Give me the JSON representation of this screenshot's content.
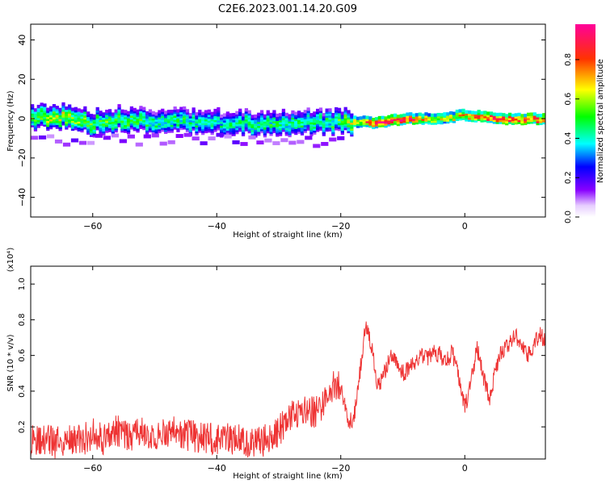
{
  "title": "C2E6.2023.001.14.20.G09",
  "chart_data": [
    {
      "type": "heatmap",
      "xlabel": "Height of straight line (km)",
      "ylabel": "Frequency (Hz)",
      "xlim": [
        -70,
        13
      ],
      "ylim": [
        -50,
        48
      ],
      "xticks": [
        -60,
        -40,
        -20,
        0
      ],
      "yticks": [
        -40,
        -20,
        0,
        20,
        40
      ],
      "colorbar": {
        "label": "Normalized spectral amplitude",
        "range": [
          0.0,
          0.98
        ],
        "ticks": [
          0.0,
          0.2,
          0.4,
          0.6,
          0.8
        ],
        "tick_labels": [
          "0.0",
          "0.2",
          "0.4",
          "0.6",
          "0.8"
        ],
        "colormap": "rainbow (white-purple-blue-cyan-green-yellow-red-magenta)"
      },
      "ridge": [
        {
          "x": -70,
          "freq": 0,
          "amp": 0.55
        },
        {
          "x": -65,
          "freq": 1,
          "amp": 0.6
        },
        {
          "x": -60,
          "freq": -2,
          "amp": 0.5
        },
        {
          "x": -55,
          "freq": 0,
          "amp": 0.5
        },
        {
          "x": -50,
          "freq": -1,
          "amp": 0.45
        },
        {
          "x": -45,
          "freq": -1,
          "amp": 0.45
        },
        {
          "x": -40,
          "freq": -2,
          "amp": 0.4
        },
        {
          "x": -35,
          "freq": -2,
          "amp": 0.45
        },
        {
          "x": -30,
          "freq": -2,
          "amp": 0.45
        },
        {
          "x": -25,
          "freq": -2,
          "amp": 0.45
        },
        {
          "x": -20,
          "freq": -1,
          "amp": 0.5
        },
        {
          "x": -15,
          "freq": -2,
          "amp": 0.8
        },
        {
          "x": -10,
          "freq": 0,
          "amp": 0.85
        },
        {
          "x": -5,
          "freq": 0,
          "amp": 0.6
        },
        {
          "x": 0,
          "freq": 2,
          "amp": 0.7
        },
        {
          "x": 5,
          "freq": 0,
          "amp": 0.85
        },
        {
          "x": 13,
          "freq": 0,
          "amp": 0.8
        }
      ]
    },
    {
      "type": "line",
      "xlabel": "Height of straight line (km)",
      "ylabel": "SNR (10 * v/v)",
      "y_multiplier": "(x10⁴)",
      "xlim": [
        -70,
        13
      ],
      "ylim": [
        0.02,
        1.1
      ],
      "xticks": [
        -60,
        -40,
        -20,
        0
      ],
      "yticks": [
        0.2,
        0.4,
        0.6,
        0.8,
        1.0
      ],
      "ytick_labels": [
        "0.2",
        "0.4",
        "0.6",
        "0.8",
        "1.0"
      ],
      "color": "#ee3333",
      "x": [
        -70,
        -68,
        -66,
        -64,
        -62,
        -60,
        -58,
        -56,
        -54,
        -52,
        -50,
        -48,
        -46,
        -44,
        -42,
        -40,
        -38,
        -36,
        -34,
        -32,
        -30,
        -28,
        -26,
        -24,
        -22,
        -21,
        -20,
        -19,
        -18,
        -17,
        -16,
        -15,
        -14,
        -13,
        -12,
        -11,
        -10,
        -9,
        -8,
        -7,
        -6,
        -5,
        -4,
        -3,
        -2,
        -1,
        0,
        1,
        2,
        3,
        4,
        5,
        6,
        7,
        8,
        9,
        10,
        11,
        12,
        13
      ],
      "values": [
        0.12,
        0.13,
        0.11,
        0.14,
        0.12,
        0.16,
        0.13,
        0.18,
        0.15,
        0.17,
        0.14,
        0.18,
        0.16,
        0.15,
        0.14,
        0.13,
        0.14,
        0.12,
        0.1,
        0.13,
        0.18,
        0.26,
        0.3,
        0.28,
        0.36,
        0.45,
        0.42,
        0.25,
        0.22,
        0.48,
        0.78,
        0.65,
        0.42,
        0.5,
        0.6,
        0.55,
        0.5,
        0.52,
        0.56,
        0.6,
        0.58,
        0.63,
        0.6,
        0.56,
        0.62,
        0.48,
        0.3,
        0.46,
        0.64,
        0.48,
        0.36,
        0.52,
        0.63,
        0.66,
        0.72,
        0.68,
        0.6,
        0.65,
        0.72,
        0.68
      ]
    }
  ]
}
